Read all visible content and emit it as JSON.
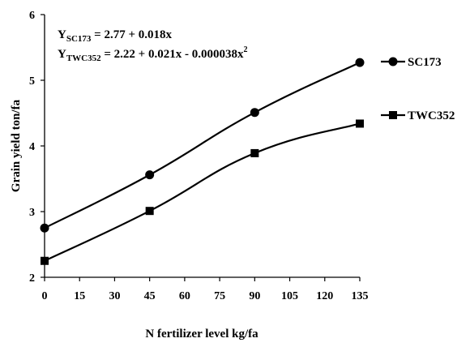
{
  "chart_data": {
    "type": "line",
    "title": "",
    "xlabel": "N fertilizer  level kg/fa",
    "ylabel": "Grain  yield ton/fa",
    "xlim": [
      0,
      135
    ],
    "ylim": [
      2,
      6
    ],
    "x_ticks": [
      "0",
      "15",
      "30",
      "45",
      "60",
      "75",
      "90",
      "105",
      "120",
      "135"
    ],
    "y_ticks": [
      "2",
      "3",
      "4",
      "5",
      "6"
    ],
    "grid": false,
    "legend_position": "right",
    "series": [
      {
        "name": "SC173",
        "marker": "circle",
        "color": "#000000",
        "x": [
          0,
          45,
          90,
          135
        ],
        "values": [
          2.75,
          3.56,
          4.51,
          5.27
        ]
      },
      {
        "name": "TWC352",
        "marker": "square",
        "color": "#000000",
        "x": [
          0,
          45,
          90,
          135
        ],
        "values": [
          2.25,
          3.01,
          3.89,
          4.34
        ]
      }
    ],
    "annotations": {
      "eq1": {
        "y_letter": "Y",
        "subscript": "SC173",
        "rhs": " = 2.77 + 0.018x"
      },
      "eq2": {
        "y_letter": "Y",
        "subscript": "TWC352",
        "rhs": " = 2.22 + 0.021x - 0.000038x",
        "superscript": "2"
      }
    }
  }
}
